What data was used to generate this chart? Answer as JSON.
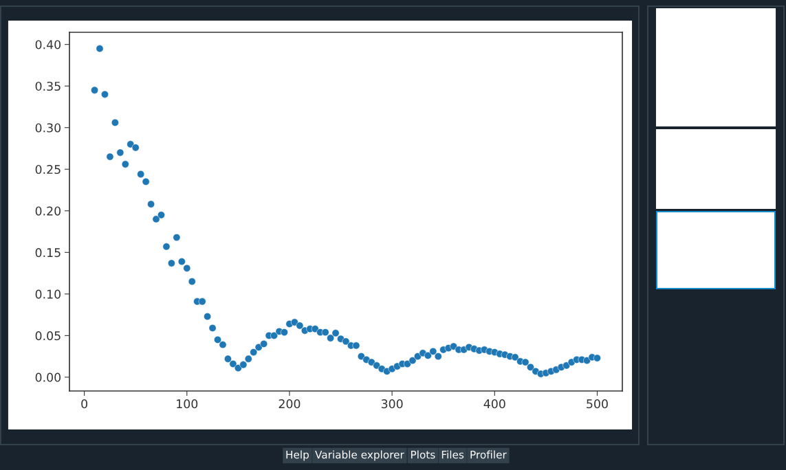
{
  "chart_data": [
    {
      "type": "scatter",
      "marker": "circle",
      "grid": false,
      "legend": false,
      "x": [
        10,
        15,
        20,
        25,
        30,
        35,
        40,
        45,
        50,
        55,
        60,
        65,
        70,
        75,
        80,
        85,
        90,
        95,
        100,
        105,
        110,
        115,
        120,
        125,
        130,
        135,
        140,
        145,
        150,
        155,
        160,
        165,
        170,
        175,
        180,
        185,
        190,
        195,
        200,
        205,
        210,
        215,
        220,
        225,
        230,
        235,
        240,
        245,
        250,
        255,
        260,
        265,
        270,
        275,
        280,
        285,
        290,
        295,
        300,
        305,
        310,
        315,
        320,
        325,
        330,
        335,
        340,
        345,
        350,
        355,
        360,
        365,
        370,
        375,
        380,
        385,
        390,
        395,
        400,
        405,
        410,
        415,
        420,
        425,
        430,
        435,
        440,
        445,
        450,
        455,
        460,
        465,
        470,
        475,
        480,
        485,
        490,
        495,
        500
      ],
      "series": [
        {
          "color": "#1f77b4",
          "values": [
            0.345,
            0.395,
            0.34,
            0.265,
            0.306,
            0.27,
            0.256,
            0.28,
            0.276,
            0.244,
            0.235,
            0.208,
            0.19,
            0.195,
            0.157,
            0.137,
            0.168,
            0.139,
            0.131,
            0.115,
            0.091,
            0.091,
            0.073,
            0.059,
            0.045,
            0.039,
            0.022,
            0.016,
            0.011,
            0.015,
            0.022,
            0.03,
            0.036,
            0.04,
            0.05,
            0.05,
            0.055,
            0.054,
            0.064,
            0.066,
            0.062,
            0.056,
            0.058,
            0.058,
            0.054,
            0.054,
            0.047,
            0.053,
            0.046,
            0.043,
            0.038,
            0.038,
            0.025,
            0.021,
            0.018,
            0.014,
            0.01,
            0.007,
            0.01,
            0.013,
            0.016,
            0.016,
            0.02,
            0.025,
            0.029,
            0.026,
            0.031,
            0.025,
            0.033,
            0.035,
            0.037,
            0.033,
            0.033,
            0.036,
            0.034,
            0.032,
            0.033,
            0.031,
            0.03,
            0.028,
            0.027,
            0.025,
            0.024,
            0.019,
            0.018,
            0.012,
            0.007,
            0.004,
            0.005,
            0.007,
            0.009,
            0.012,
            0.014,
            0.018,
            0.021,
            0.021,
            0.02,
            0.024,
            0.023
          ]
        }
      ],
      "xlim": [
        -14.5,
        524.5
      ],
      "ylim": [
        -0.0166,
        0.4146
      ],
      "xticks": [
        0,
        100,
        200,
        300,
        400,
        500
      ],
      "yticks": [
        {
          "value": 0,
          "label": "0.00"
        },
        {
          "value": 0.05,
          "label": "0.05"
        },
        {
          "value": 0.1,
          "label": "0.10"
        },
        {
          "value": 0.15,
          "label": "0.15"
        },
        {
          "value": 0.2,
          "label": "0.20"
        },
        {
          "value": 0.25,
          "label": "0.25"
        },
        {
          "value": 0.3,
          "label": "0.30"
        },
        {
          "value": 0.35,
          "label": "0.35"
        },
        {
          "value": 0.4,
          "label": "0.40"
        }
      ]
    },
    {
      "type": "other",
      "annotations": [
        "Help",
        "Variable explorer",
        "Plots",
        "Files",
        "Profiler"
      ]
    }
  ]
}
